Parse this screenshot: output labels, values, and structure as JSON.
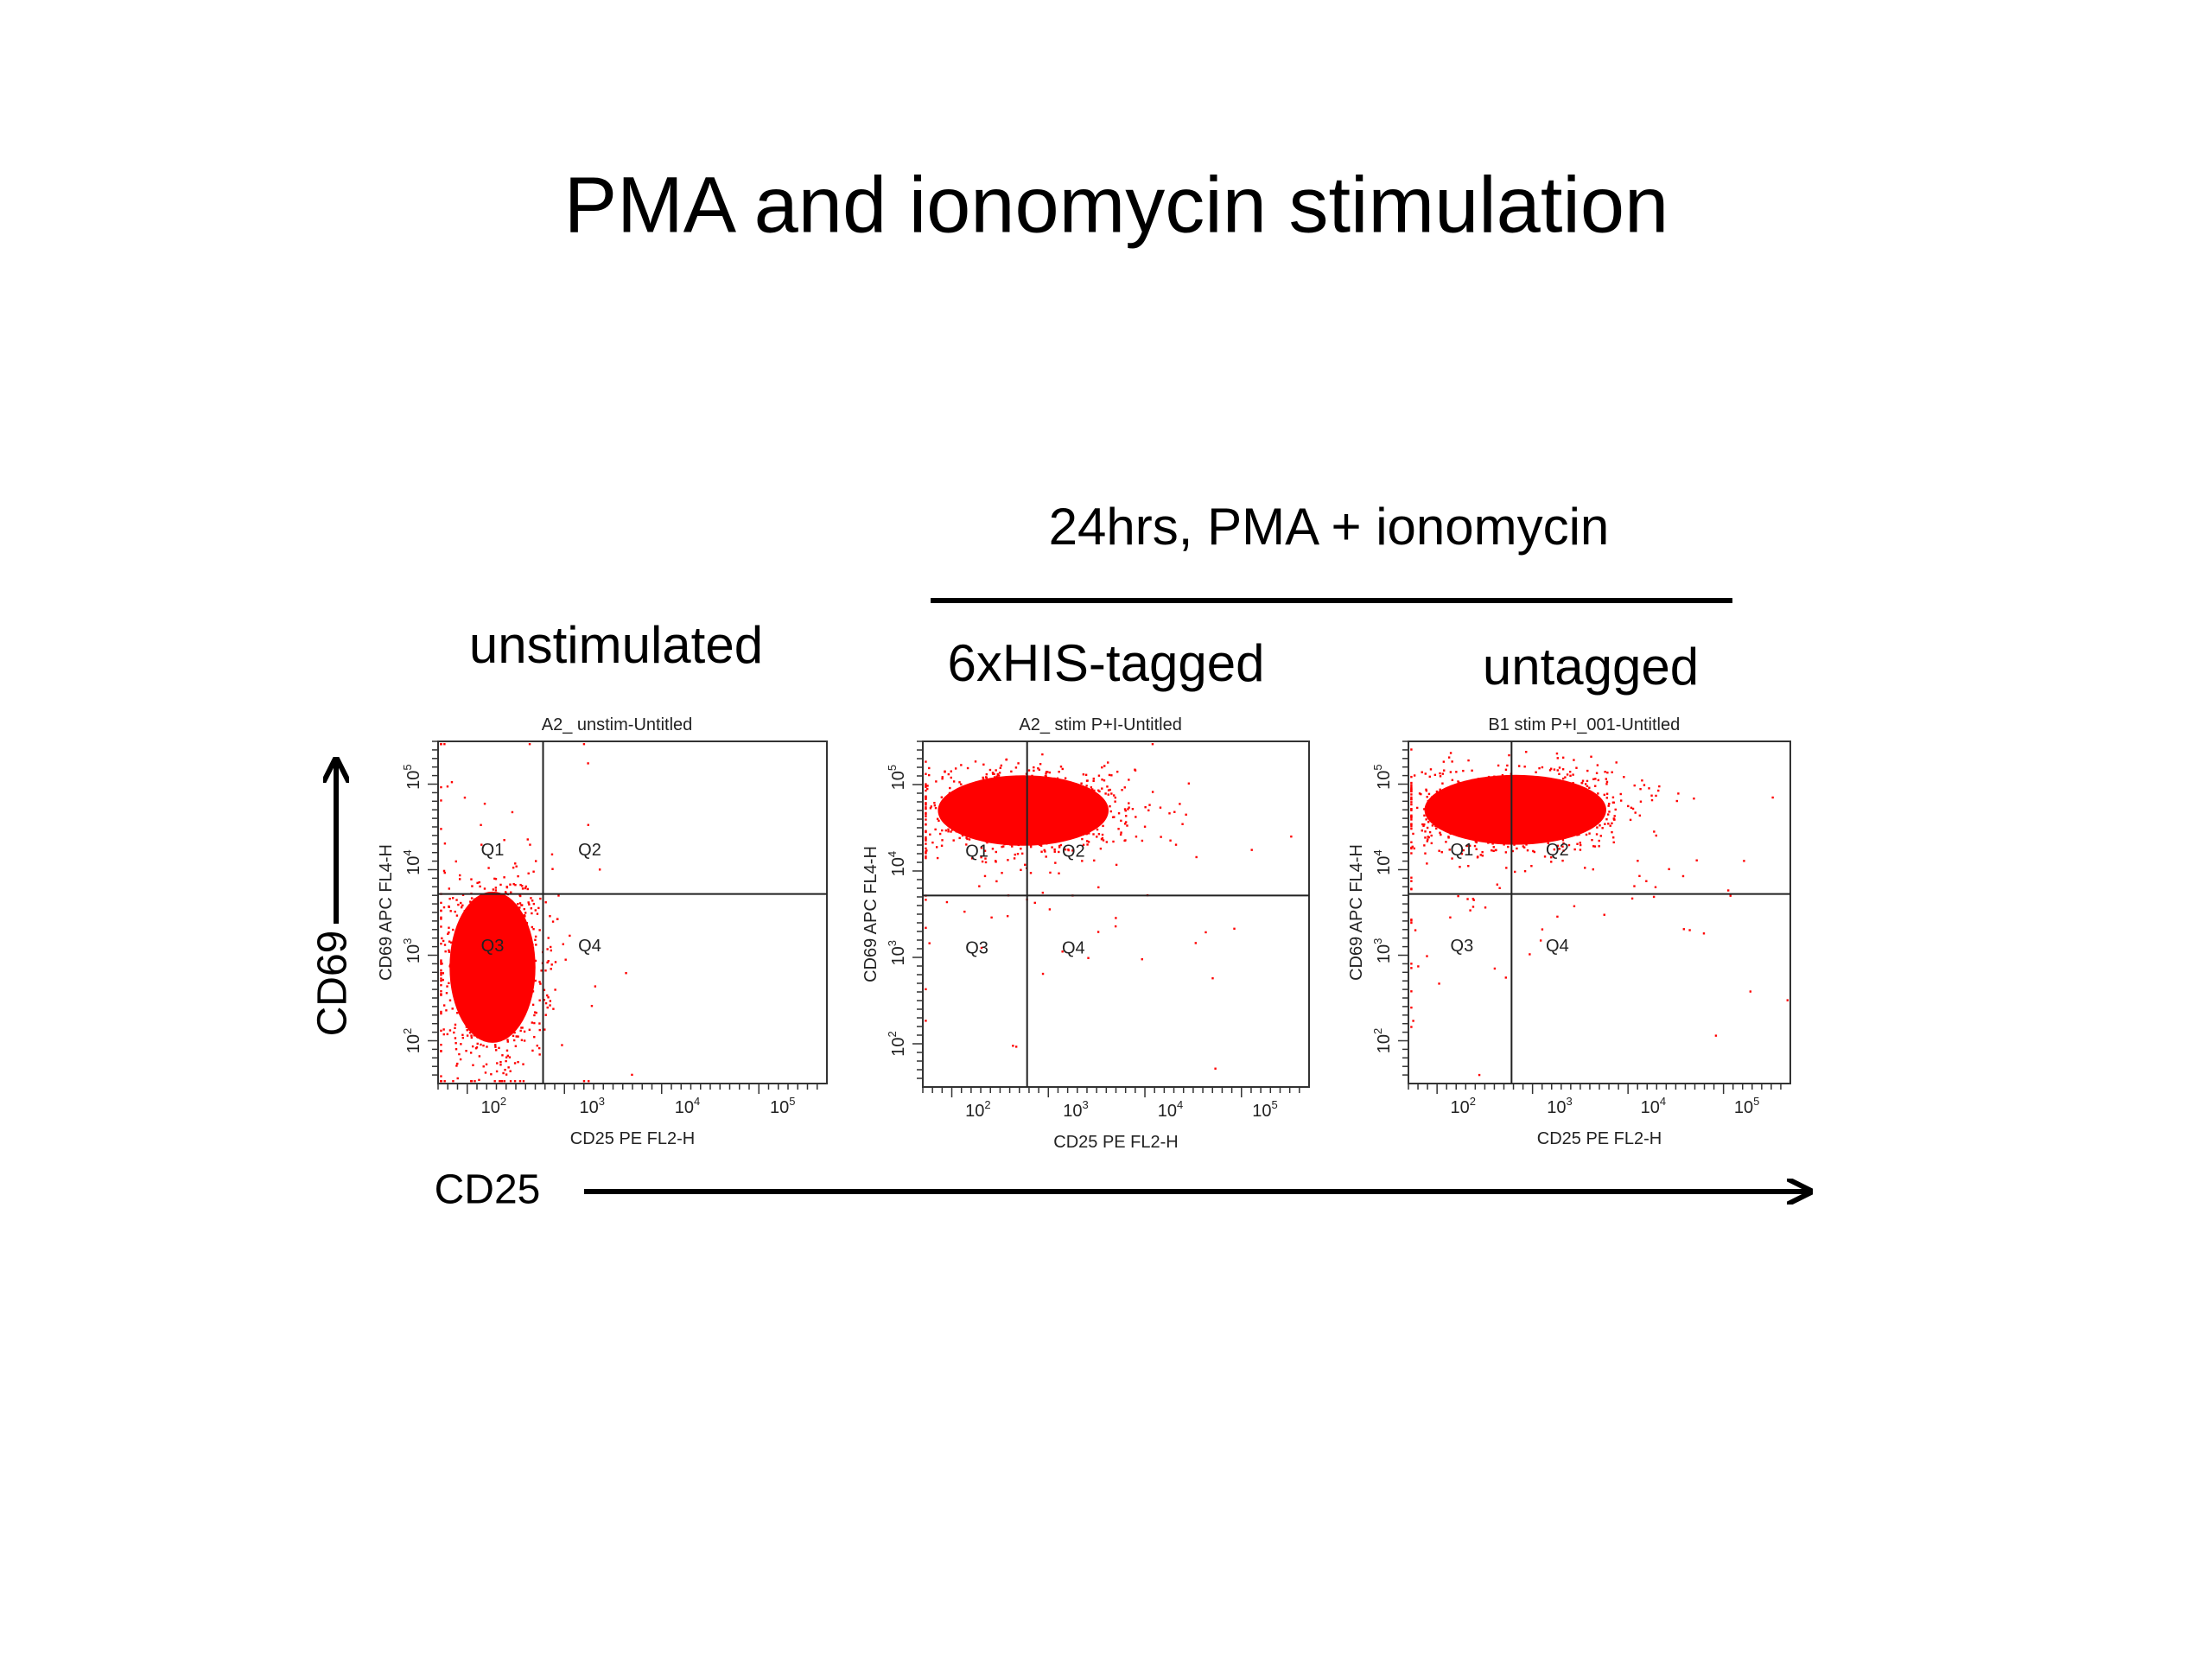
{
  "title": "PMA and ionomycin stimulation",
  "group_label": "24hrs, PMA + ionomycin",
  "y_axis_label": "CD69",
  "x_axis_label": "CD25",
  "panels": [
    {
      "label": "unstimulated",
      "plot_title": "A2_ unstim-Untitled",
      "x_label": "CD25 PE FL2-H",
      "y_label": "CD69 APC FL4-H",
      "quadrants": [
        "Q1",
        "Q2",
        "Q3",
        "Q4"
      ],
      "xticks": [
        {
          "base": "10",
          "exp": "2"
        },
        {
          "base": "10",
          "exp": "3"
        },
        {
          "base": "10",
          "exp": "4"
        },
        {
          "base": "10",
          "exp": "5"
        }
      ],
      "yticks": [
        {
          "base": "10",
          "exp": "2"
        },
        {
          "base": "10",
          "exp": "3"
        },
        {
          "base": "10",
          "exp": "4"
        },
        {
          "base": "10",
          "exp": "5"
        }
      ]
    },
    {
      "label": "6xHIS-tagged",
      "plot_title": "A2_ stim P+I-Untitled",
      "x_label": "CD25 PE FL2-H",
      "y_label": "CD69 APC FL4-H",
      "quadrants": [
        "Q1",
        "Q2",
        "Q3",
        "Q4"
      ],
      "xticks": [
        {
          "base": "10",
          "exp": "2"
        },
        {
          "base": "10",
          "exp": "3"
        },
        {
          "base": "10",
          "exp": "4"
        },
        {
          "base": "10",
          "exp": "5"
        }
      ],
      "yticks": [
        {
          "base": "10",
          "exp": "2"
        },
        {
          "base": "10",
          "exp": "3"
        },
        {
          "base": "10",
          "exp": "4"
        },
        {
          "base": "10",
          "exp": "5"
        }
      ]
    },
    {
      "label": "untagged",
      "plot_title": "B1 stim P+I_001-Untitled",
      "x_label": "CD25 PE FL2-H",
      "y_label": "CD69 APC FL4-H",
      "quadrants": [
        "Q1",
        "Q2",
        "Q3",
        "Q4"
      ],
      "xticks": [
        {
          "base": "10",
          "exp": "2"
        },
        {
          "base": "10",
          "exp": "3"
        },
        {
          "base": "10",
          "exp": "4"
        },
        {
          "base": "10",
          "exp": "5"
        }
      ],
      "yticks": [
        {
          "base": "10",
          "exp": "2"
        },
        {
          "base": "10",
          "exp": "3"
        },
        {
          "base": "10",
          "exp": "4"
        },
        {
          "base": "10",
          "exp": "5"
        }
      ]
    }
  ]
}
